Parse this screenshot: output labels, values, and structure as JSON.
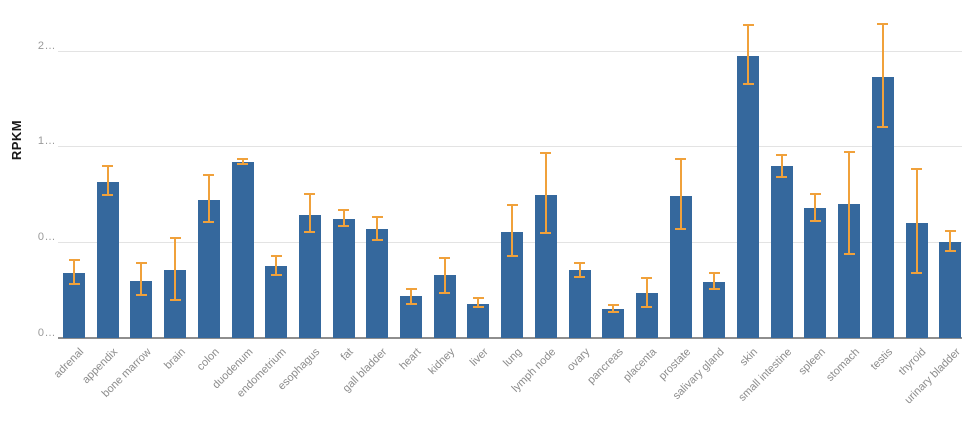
{
  "chart_data": {
    "type": "bar",
    "title": "",
    "xlabel": "",
    "ylabel": "RPKM",
    "categories": [
      "adrenal",
      "appendix",
      "bone marrow",
      "brain",
      "colon",
      "duodenum",
      "endometrium",
      "esophagus",
      "fat",
      "gall bladder",
      "heart",
      "kidney",
      "liver",
      "lung",
      "lymph node",
      "ovary",
      "pancreas",
      "placenta",
      "prostate",
      "salivary gland",
      "skin",
      "small intestine",
      "spleen",
      "stomach",
      "testis",
      "thyroid",
      "urinary bladder"
    ],
    "values": [
      0.51,
      1.22,
      0.45,
      0.53,
      1.08,
      1.38,
      0.56,
      0.96,
      0.93,
      0.85,
      0.33,
      0.49,
      0.27,
      0.83,
      1.12,
      0.53,
      0.23,
      0.35,
      1.11,
      0.44,
      2.21,
      1.35,
      1.02,
      1.05,
      2.04,
      0.9,
      0.75
    ],
    "error_low": [
      0.42,
      1.12,
      0.34,
      0.3,
      0.91,
      1.36,
      0.49,
      0.83,
      0.88,
      0.77,
      0.27,
      0.35,
      0.24,
      0.64,
      0.82,
      0.48,
      0.2,
      0.24,
      0.85,
      0.38,
      1.99,
      1.26,
      0.92,
      0.66,
      1.65,
      0.51,
      0.68
    ],
    "error_high": [
      0.61,
      1.35,
      0.59,
      0.78,
      1.28,
      1.4,
      0.64,
      1.13,
      1.0,
      0.95,
      0.38,
      0.63,
      0.31,
      1.04,
      1.45,
      0.59,
      0.26,
      0.47,
      1.4,
      0.51,
      2.45,
      1.43,
      1.13,
      1.46,
      2.46,
      1.32,
      0.84
    ],
    "yticks": {
      "labels": [
        "2…",
        "1…",
        "0…",
        "0…"
      ],
      "values": [
        2.25,
        1.5,
        0.75,
        0
      ]
    },
    "ylim": [
      0,
      2.6
    ],
    "grid": true,
    "legend": false,
    "error_bars": true,
    "colors": {
      "bar": "#35689d",
      "error_bar": "#f0a13b",
      "gridline": "#e3e3e3",
      "axis_line": "#8e8e8e",
      "tick_text": "#999999",
      "category_text": "#8c8c8c",
      "axis_title_text": "#1a1a1a"
    }
  }
}
